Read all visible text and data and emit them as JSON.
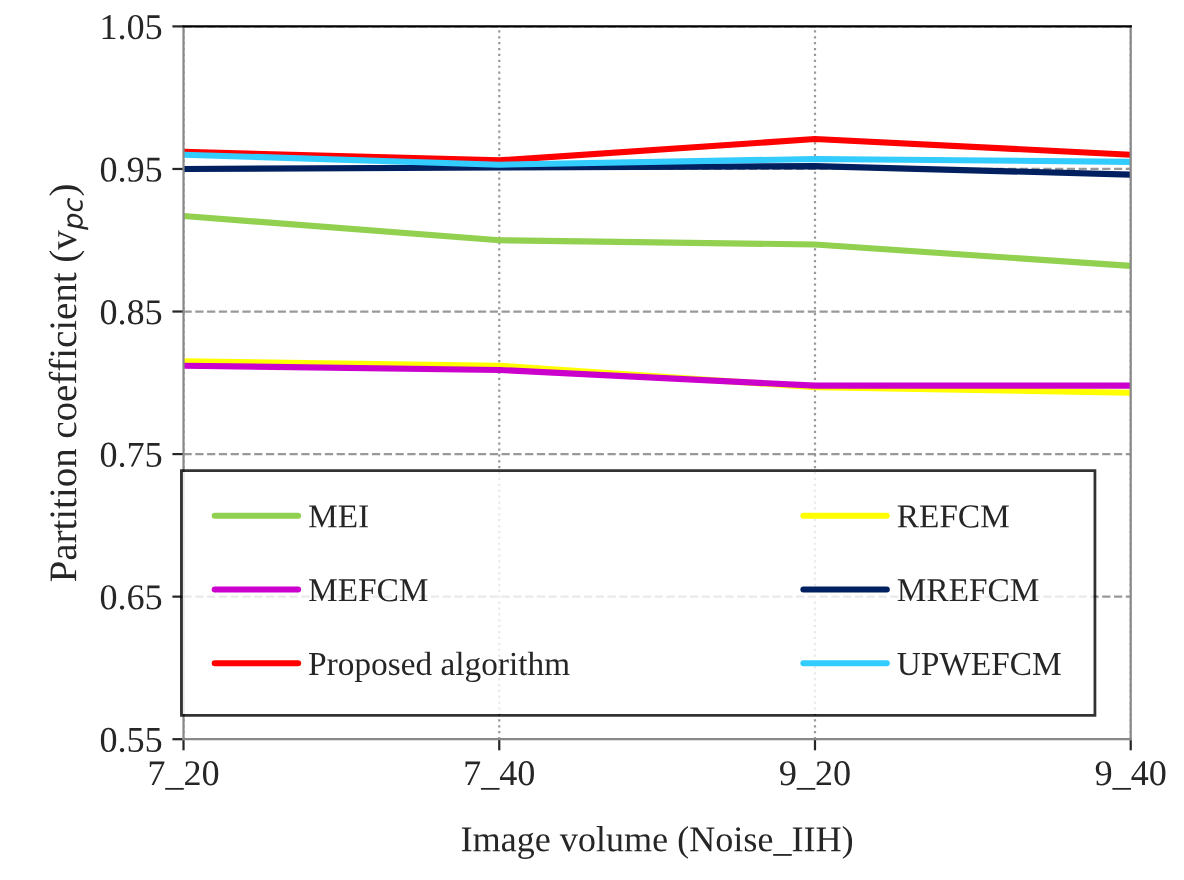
{
  "chart_data": {
    "type": "line",
    "xlabel": "Image volume (Noise_IIH)",
    "ylabel": "Partition coefficient (v$_{pc}$)",
    "categories": [
      "7_20",
      "7_40",
      "9_20",
      "9_40"
    ],
    "series": [
      {
        "name": "MEI",
        "color": "#92d050",
        "values": [
          0.917,
          0.9,
          0.897,
          0.882
        ]
      },
      {
        "name": "REFCM",
        "color": "#ffff00",
        "values": [
          0.815,
          0.812,
          0.797,
          0.793
        ]
      },
      {
        "name": "MEFCM",
        "color": "#cc00cc",
        "values": [
          0.812,
          0.809,
          0.798,
          0.798
        ]
      },
      {
        "name": "MREFCM",
        "color": "#002060",
        "values": [
          0.95,
          0.951,
          0.952,
          0.946
        ]
      },
      {
        "name": "Proposed algorithm",
        "color": "#ff0000",
        "values": [
          0.962,
          0.956,
          0.971,
          0.96
        ]
      },
      {
        "name": "UPWEFCM",
        "color": "#33ccff",
        "values": [
          0.96,
          0.953,
          0.957,
          0.955
        ]
      }
    ],
    "ylim": [
      0.55,
      1.05
    ],
    "yticks": [
      {
        "value": 0.55,
        "label": "0.55"
      },
      {
        "value": 0.65,
        "label": "0.65"
      },
      {
        "value": 0.75,
        "label": "0.75"
      },
      {
        "value": 0.85,
        "label": "0.85"
      },
      {
        "value": 0.95,
        "label": "0.95"
      },
      {
        "value": 1.05,
        "label": "1.05"
      }
    ],
    "grid": true,
    "legend": "bottom",
    "marker": "none",
    "line_style": "solid"
  }
}
